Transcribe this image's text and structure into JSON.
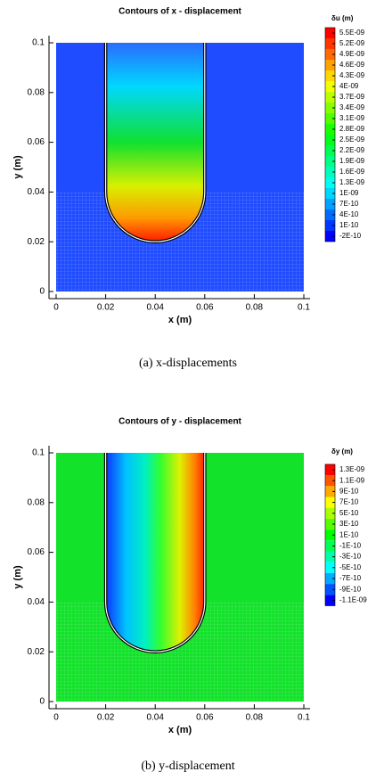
{
  "chart_data": [
    {
      "type": "contour",
      "title": "Contours of x - displacement",
      "x_label": "x (m)",
      "y_label": "y (m)",
      "xlim": [
        0,
        0.1
      ],
      "ylim": [
        0,
        0.1
      ],
      "xticks": [
        0,
        0.02,
        0.04,
        0.06,
        0.08,
        0.1
      ],
      "yticks": [
        0,
        0.02,
        0.04,
        0.06,
        0.08,
        0.1
      ],
      "colorbar": {
        "label": "δu (m)",
        "levels": [
          {
            "value": 5.5e-09,
            "label": "5.5E-09"
          },
          {
            "value": 5.2e-09,
            "label": "5.2E-09"
          },
          {
            "value": 4.9e-09,
            "label": "4.9E-09"
          },
          {
            "value": 4.6e-09,
            "label": "4.6E-09"
          },
          {
            "value": 4.3e-09,
            "label": "4.3E-09"
          },
          {
            "value": 4e-09,
            "label": "4E-09"
          },
          {
            "value": 3.7e-09,
            "label": "3.7E-09"
          },
          {
            "value": 3.4e-09,
            "label": "3.4E-09"
          },
          {
            "value": 3.1e-09,
            "label": "3.1E-09"
          },
          {
            "value": 2.8e-09,
            "label": "2.8E-09"
          },
          {
            "value": 2.5e-09,
            "label": "2.5E-09"
          },
          {
            "value": 2.2e-09,
            "label": "2.2E-09"
          },
          {
            "value": 1.9e-09,
            "label": "1.9E-09"
          },
          {
            "value": 1.6e-09,
            "label": "1.6E-09"
          },
          {
            "value": 1.3e-09,
            "label": "1.3E-09"
          },
          {
            "value": 1e-09,
            "label": "1E-09"
          },
          {
            "value": 7e-10,
            "label": "7E-10"
          },
          {
            "value": 4e-10,
            "label": "4E-10"
          },
          {
            "value": 1e-10,
            "label": "1E-10"
          },
          {
            "value": -2e-10,
            "label": "-2E-10"
          }
        ]
      },
      "caption": "(a) x-displacements"
    },
    {
      "type": "contour",
      "title": "Contours of y - displacement",
      "x_label": "x (m)",
      "y_label": "y (m)",
      "xlim": [
        0,
        0.1
      ],
      "ylim": [
        0,
        0.1
      ],
      "xticks": [
        0,
        0.02,
        0.04,
        0.06,
        0.08,
        0.1
      ],
      "yticks": [
        0,
        0.02,
        0.04,
        0.06,
        0.08,
        0.1
      ],
      "colorbar": {
        "label": "δy (m)",
        "levels": [
          {
            "value": 1.3e-09,
            "label": "1.3E-09"
          },
          {
            "value": 1.1e-09,
            "label": "1.1E-09"
          },
          {
            "value": 9e-10,
            "label": "9E-10"
          },
          {
            "value": 7e-10,
            "label": "7E-10"
          },
          {
            "value": 5e-10,
            "label": "5E-10"
          },
          {
            "value": 3e-10,
            "label": "3E-10"
          },
          {
            "value": 1e-10,
            "label": "1E-10"
          },
          {
            "value": -1e-10,
            "label": "-1E-10"
          },
          {
            "value": -3e-10,
            "label": "-3E-10"
          },
          {
            "value": -5e-10,
            "label": "-5E-10"
          },
          {
            "value": -7e-10,
            "label": "-7E-10"
          },
          {
            "value": -9e-10,
            "label": "-9E-10"
          },
          {
            "value": -1.1e-09,
            "label": "-1.1E-09"
          }
        ]
      },
      "caption": "(b) y-displacement"
    }
  ]
}
